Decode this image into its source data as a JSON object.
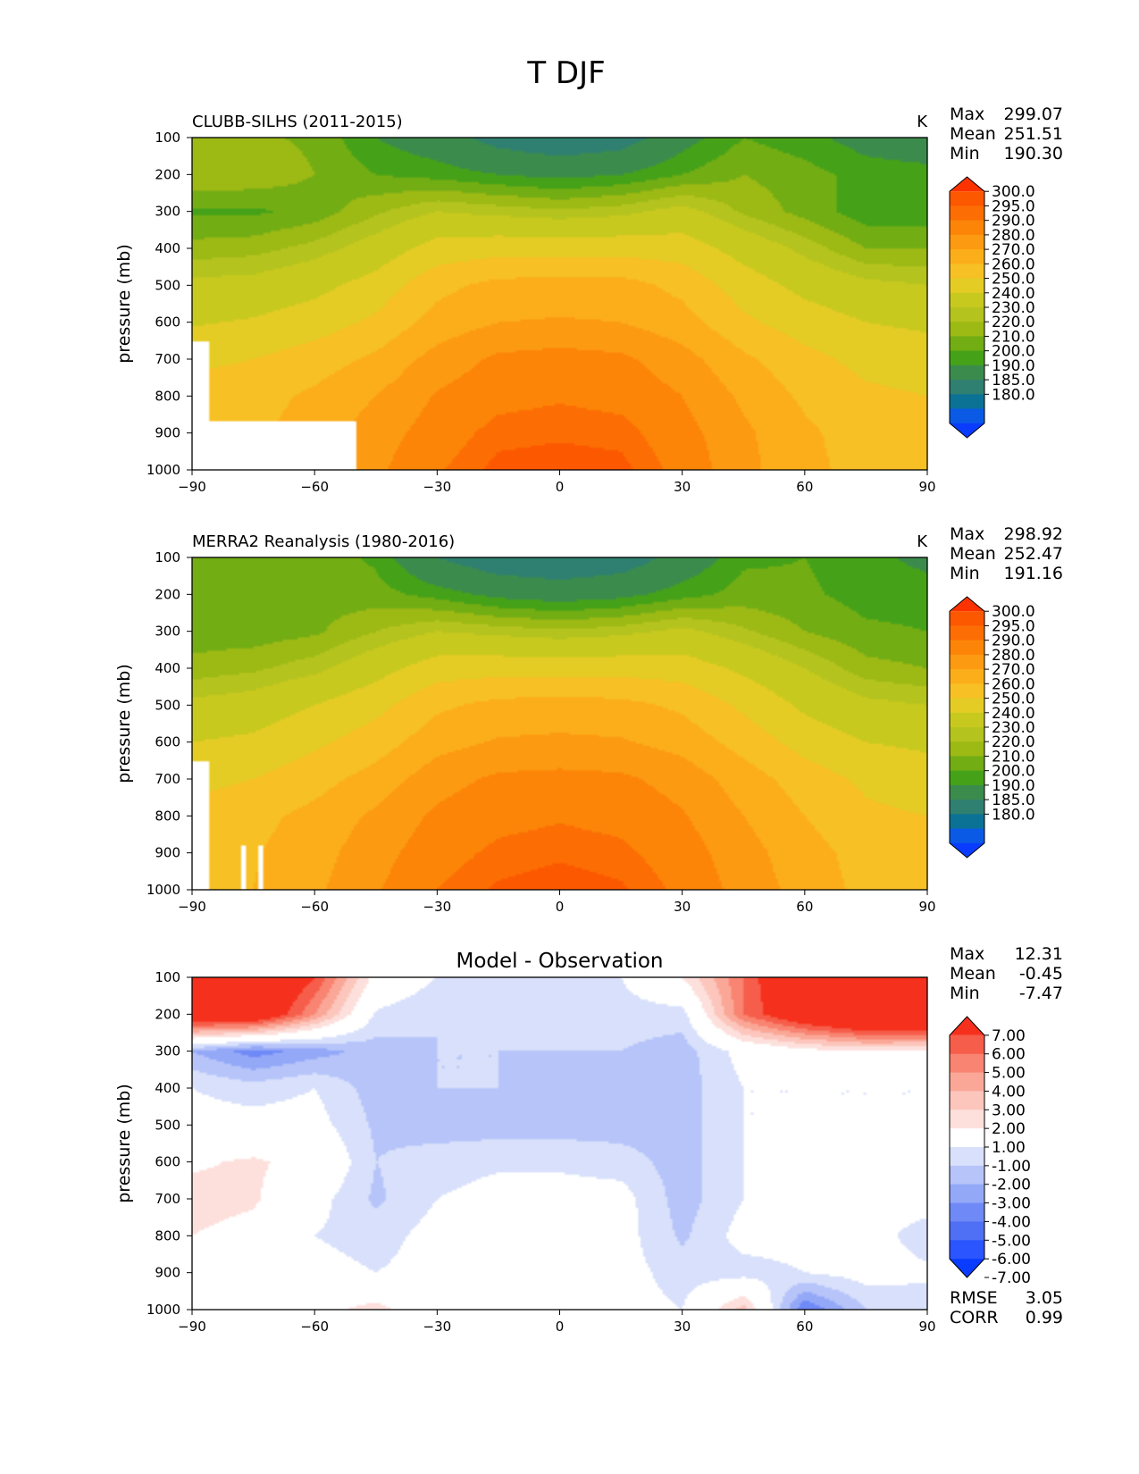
{
  "figure": {
    "title": "T DJF"
  },
  "colors": {
    "abs_levels": [
      "#0a3cff",
      "#0a5ae6",
      "#0b7296",
      "#2f8070",
      "#3b8c4c",
      "#45a218",
      "#72ad14",
      "#9cb914",
      "#b4c31e",
      "#c8c91e",
      "#e4cc24",
      "#f7c024",
      "#fcae1a",
      "#fc9a12",
      "#fc8508",
      "#fc6e04",
      "#fc5800",
      "#fc3200"
    ],
    "diff_levels": [
      "#0a3cff",
      "#2a55ff",
      "#4f70f5",
      "#6f89f7",
      "#94a8f8",
      "#b6c4f9",
      "#d8e0fb",
      "#ffffff",
      "#fde0dc",
      "#fcc6bd",
      "#fba797",
      "#f88471",
      "#f65d4a",
      "#f5301c"
    ]
  },
  "chart_data": [
    {
      "type": "heatmap",
      "panel": "model",
      "title": "CLUBB-SILHS (2011-2015)",
      "units": "K",
      "ylabel": "pressure (mb)",
      "xlabel": "",
      "xlim": [
        -90,
        90
      ],
      "ylim": [
        100,
        1000
      ],
      "y_inverted": true,
      "x_ticks": [
        "−90",
        "−60",
        "−30",
        "0",
        "30",
        "60",
        "90"
      ],
      "y_ticks": [
        "100",
        "200",
        "300",
        "400",
        "500",
        "600",
        "700",
        "800",
        "900",
        "1000"
      ],
      "stats": {
        "max_label": "Max",
        "max": "299.07",
        "mean_label": "Mean",
        "mean": "251.51",
        "min_label": "Min",
        "min": "190.30"
      },
      "colorbar": {
        "extend": "both",
        "labels": [
          "300.0",
          "295.0",
          "290.0",
          "280.0",
          "270.0",
          "260.0",
          "250.0",
          "240.0",
          "230.0",
          "220.0",
          "210.0",
          "200.0",
          "190.0",
          "185.0",
          "180.0"
        ]
      },
      "lat": [
        -90,
        -75,
        -60,
        -45,
        -30,
        -15,
        0,
        15,
        30,
        45,
        60,
        75,
        90
      ],
      "levels": [
        100,
        200,
        300,
        400,
        500,
        600,
        700,
        800,
        900,
        1000
      ],
      "values": [
        [
          221,
          221,
          219,
          210,
          205,
          196,
          192,
          195,
          207,
          215,
          212,
          207,
          205
        ],
        [
          225,
          224,
          220,
          215,
          213,
          210,
          208,
          210,
          215,
          220,
          217,
          213,
          212
        ],
        [
          214,
          214,
          217,
          224,
          230,
          228,
          226,
          228,
          233,
          224,
          218,
          212,
          212
        ],
        [
          222,
          223,
          227,
          234,
          244,
          246,
          246,
          246,
          245,
          236,
          228,
          220,
          220
        ],
        [
          232,
          233,
          237,
          244,
          257,
          263,
          264,
          264,
          257,
          245,
          237,
          232,
          230
        ],
        [
          239,
          241,
          245,
          252,
          264,
          270,
          271,
          270,
          264,
          252,
          245,
          240,
          238
        ],
        [
          248,
          250,
          255,
          262,
          274,
          282,
          284,
          282,
          274,
          262,
          253,
          247,
          245
        ],
        [
          253,
          256,
          262,
          270,
          281,
          287,
          289,
          287,
          280,
          268,
          258,
          252,
          250
        ],
        [
          254,
          258,
          265,
          275,
          285,
          293,
          294,
          293,
          284,
          272,
          262,
          255,
          252
        ],
        [
          254,
          258,
          268,
          278,
          289,
          297,
          298,
          297,
          287,
          273,
          263,
          256,
          252
        ]
      ],
      "missing": "Antarctic surface: 85S-90S below 650 mb; 50S-88S below 870 mb"
    },
    {
      "type": "heatmap",
      "panel": "obs",
      "title": "MERRA2 Reanalysis (1980-2016)",
      "units": "K",
      "ylabel": "pressure (mb)",
      "xlabel": "",
      "xlim": [
        -90,
        90
      ],
      "ylim": [
        100,
        1000
      ],
      "y_inverted": true,
      "x_ticks": [
        "−90",
        "−60",
        "−30",
        "0",
        "30",
        "60",
        "90"
      ],
      "y_ticks": [
        "100",
        "200",
        "300",
        "400",
        "500",
        "600",
        "700",
        "800",
        "900",
        "1000"
      ],
      "stats": {
        "max_label": "Max",
        "max": "298.92",
        "mean_label": "Mean",
        "mean": "252.47",
        "min_label": "Min",
        "min": "191.16"
      },
      "colorbar": {
        "extend": "both",
        "labels": [
          "300.0",
          "295.0",
          "290.0",
          "280.0",
          "270.0",
          "260.0",
          "250.0",
          "240.0",
          "230.0",
          "220.0",
          "210.0",
          "200.0",
          "190.0",
          "185.0",
          "180.0"
        ]
      },
      "lat": [
        -90,
        -75,
        -60,
        -45,
        -30,
        -15,
        0,
        15,
        30,
        45,
        60,
        75,
        90
      ],
      "levels": [
        100,
        200,
        300,
        400,
        500,
        600,
        700,
        800,
        900,
        1000
      ],
      "values": [
        [
          217,
          218,
          218,
          214,
          200,
          193,
          191,
          194,
          204,
          214,
          215,
          212,
          208
        ],
        [
          216,
          217,
          218,
          217,
          213,
          208,
          206,
          208,
          213,
          217,
          216,
          213,
          213
        ],
        [
          217,
          217,
          219,
          225,
          230,
          228,
          226,
          228,
          232,
          226,
          220,
          216,
          215
        ],
        [
          222,
          224,
          228,
          236,
          245,
          246,
          246,
          246,
          245,
          238,
          230,
          222,
          220
        ],
        [
          232,
          234,
          240,
          247,
          258,
          263,
          264,
          263,
          258,
          248,
          238,
          232,
          230
        ],
        [
          240,
          242,
          248,
          255,
          266,
          271,
          272,
          271,
          266,
          256,
          246,
          240,
          238
        ],
        [
          247,
          250,
          256,
          264,
          276,
          282,
          283,
          282,
          276,
          265,
          255,
          248,
          245
        ],
        [
          253,
          257,
          263,
          272,
          282,
          287,
          289,
          287,
          281,
          270,
          260,
          252,
          250
        ],
        [
          254,
          259,
          266,
          276,
          286,
          292,
          294,
          292,
          285,
          274,
          264,
          256,
          253
        ],
        [
          254,
          260,
          268,
          279,
          290,
          296,
          298,
          296,
          288,
          276,
          266,
          257,
          252
        ]
      ],
      "missing": "Antarctic surface: 85S-90S below 650 mb; gaps near 76S-78S below 870 mb"
    },
    {
      "type": "heatmap",
      "panel": "diff",
      "title": "Model - Observation",
      "units": "",
      "ylabel": "pressure (mb)",
      "xlabel": "",
      "xlim": [
        -90,
        90
      ],
      "ylim": [
        100,
        1000
      ],
      "y_inverted": true,
      "x_ticks": [
        "−90",
        "−60",
        "−30",
        "0",
        "30",
        "60",
        "90"
      ],
      "y_ticks": [
        "100",
        "200",
        "300",
        "400",
        "500",
        "600",
        "700",
        "800",
        "900",
        "1000"
      ],
      "stats": {
        "max_label": "Max",
        "max": "12.31",
        "mean_label": "Mean",
        "mean": "-0.45",
        "min_label": "Min",
        "min": "-7.47",
        "rmse_label": "RMSE",
        "rmse": "3.05",
        "corr_label": "CORR",
        "corr": "0.99"
      },
      "colorbar": {
        "extend": "both",
        "labels": [
          "7.00",
          "6.00",
          "5.00",
          "4.00",
          "3.00",
          "2.00",
          "1.00",
          "-1.00",
          "-2.00",
          "-3.00",
          "-4.00",
          "-5.00",
          "-6.00",
          "-7.00"
        ]
      },
      "lat": [
        -90,
        -75,
        -60,
        -45,
        -30,
        -15,
        0,
        15,
        30,
        45,
        60,
        75,
        90
      ],
      "levels": [
        100,
        200,
        300,
        400,
        500,
        600,
        700,
        800,
        900,
        1000
      ],
      "values": [
        [
          9.0,
          9.0,
          6.0,
          0.5,
          -1.0,
          -1.5,
          -1.0,
          -1.0,
          1.0,
          5.0,
          9.0,
          10.0,
          10.0
        ],
        [
          8.5,
          8.5,
          4.0,
          -1.2,
          -2.0,
          -1.5,
          -1.0,
          -1.5,
          -1.5,
          5.0,
          8.0,
          10.0,
          10.0
        ],
        [
          -3.0,
          -4.5,
          -3.5,
          -2.5,
          -2.0,
          -2.0,
          -2.0,
          -2.0,
          -2.5,
          -0.5,
          0.5,
          1.0,
          0.8
        ],
        [
          -1.0,
          -1.5,
          -1.0,
          -2.5,
          -2.0,
          -2.0,
          -2.5,
          -2.0,
          -2.5,
          -1.0,
          -1.0,
          -1.0,
          -1.0
        ],
        [
          -0.5,
          -0.5,
          -0.5,
          -2.2,
          -2.5,
          -2.5,
          -2.5,
          -2.5,
          -2.5,
          -1.0,
          -1.0,
          -1.0,
          -1.0
        ],
        [
          0.8,
          1.2,
          0.5,
          -2.0,
          -1.5,
          -1.2,
          -1.2,
          -1.5,
          -2.5,
          -1.0,
          -0.8,
          -0.5,
          -0.5
        ],
        [
          1.5,
          1.2,
          -0.5,
          -2.2,
          -1.0,
          -0.5,
          -0.5,
          -0.5,
          -2.5,
          -1.0,
          -0.5,
          -0.5,
          -0.5
        ],
        [
          1.0,
          0.5,
          -1.0,
          -1.5,
          -0.5,
          -0.5,
          -0.5,
          -0.5,
          -2.2,
          -0.5,
          -0.5,
          -0.5,
          -1.5
        ],
        [
          0.5,
          0.5,
          -0.5,
          -1.0,
          -0.5,
          -0.5,
          -0.5,
          -0.5,
          -1.5,
          -1.5,
          -1.0,
          -0.5,
          -0.8
        ],
        [
          0.5,
          0.5,
          0.5,
          1.5,
          -0.5,
          -0.5,
          -0.5,
          -0.5,
          -1.0,
          2.5,
          -5.0,
          -2.0,
          -1.5
        ]
      ]
    }
  ]
}
